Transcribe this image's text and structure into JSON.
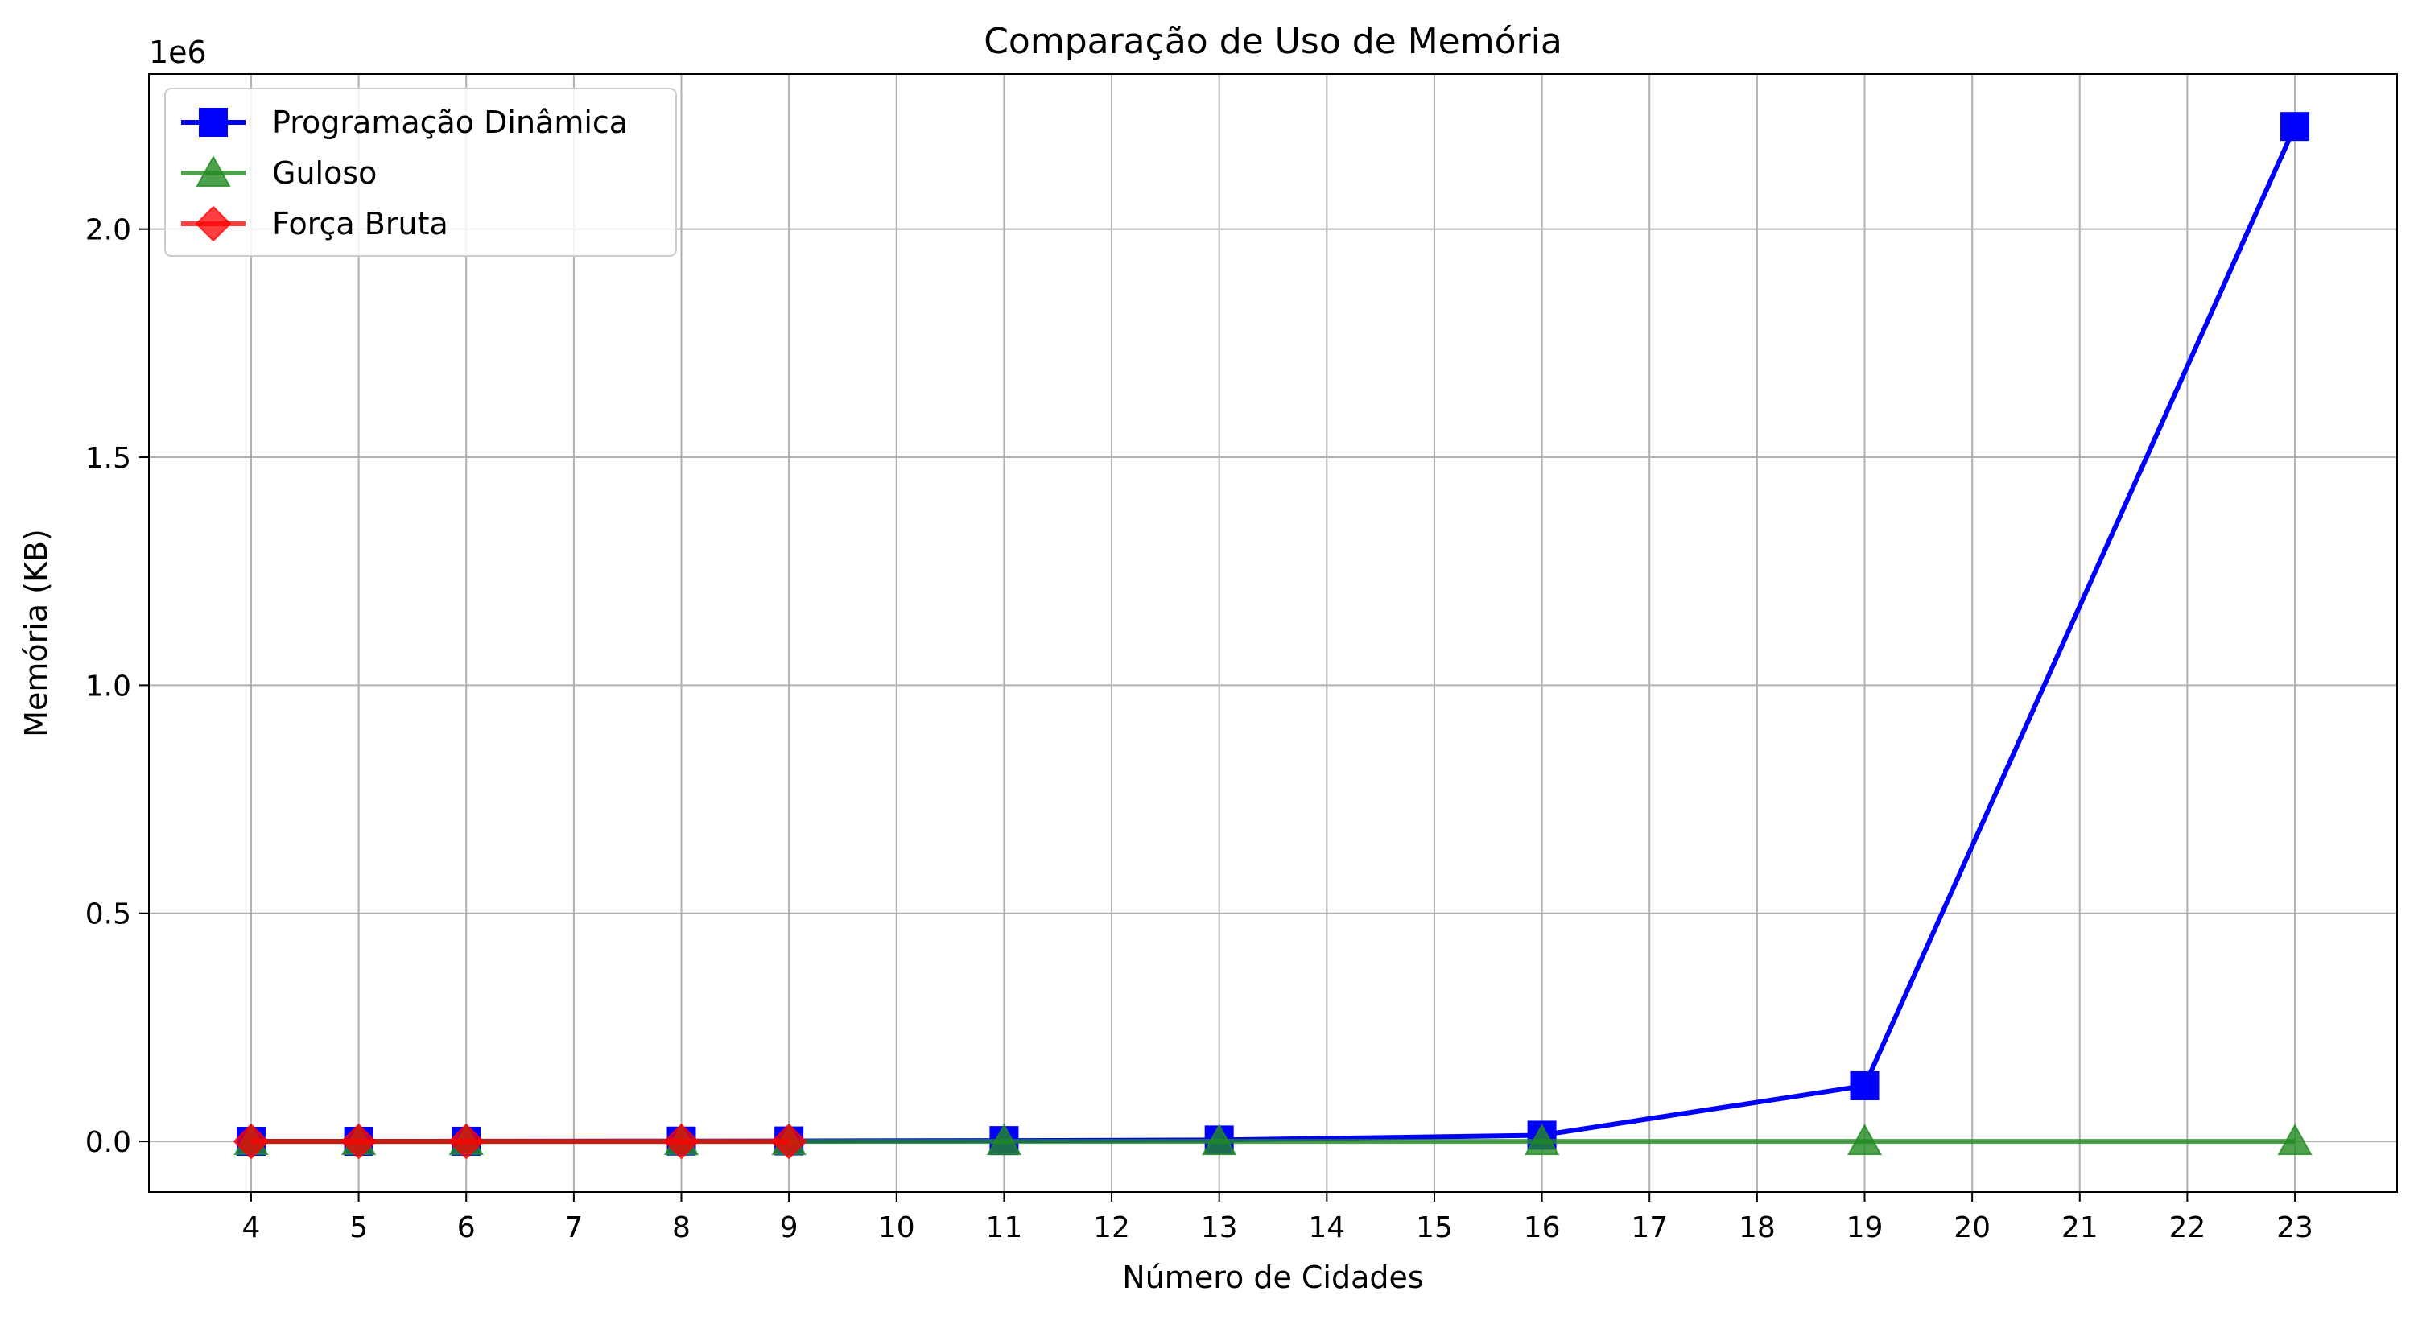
{
  "chart_data": {
    "type": "line",
    "title": "Comparação de Uso de Memória",
    "xlabel": "Número de Cidades",
    "ylabel": "Memória (KB)",
    "y_offset_label": "1e6",
    "xticks": [
      4,
      5,
      6,
      7,
      8,
      9,
      10,
      11,
      12,
      13,
      14,
      15,
      16,
      17,
      18,
      19,
      20,
      21,
      22,
      23
    ],
    "yticks": [
      0,
      0.5,
      1.0,
      1.5,
      2.0
    ],
    "ytick_labels": [
      "0.0",
      "0.5",
      "1.0",
      "1.5",
      "2.0"
    ],
    "xlim": [
      3.05,
      23.95
    ],
    "ylim": [
      -0.111,
      2.34
    ],
    "grid": true,
    "legend_position": "upper-left",
    "series": [
      {
        "name": "Programação Dinâmica",
        "color": "#0000ff",
        "marker": "square",
        "alpha": 1.0,
        "x": [
          4,
          5,
          6,
          8,
          9,
          11,
          13,
          16,
          19,
          23
        ],
        "y": [
          0.0001,
          0.0002,
          0.0003,
          0.0006,
          0.0009,
          0.0017,
          0.003,
          0.0135,
          0.122,
          2.225
        ]
      },
      {
        "name": "Guloso",
        "color": "#228b22",
        "marker": "triangle",
        "alpha": 0.8,
        "x": [
          4,
          5,
          6,
          8,
          9,
          11,
          13,
          16,
          19,
          23
        ],
        "y": [
          0,
          0,
          0,
          0,
          0,
          0,
          0,
          0,
          0,
          0
        ]
      },
      {
        "name": "Força Bruta",
        "color": "#ff0000",
        "marker": "diamond",
        "alpha": 0.75,
        "x": [
          4,
          5,
          6,
          8,
          9
        ],
        "y": [
          0,
          0,
          0,
          0,
          0
        ]
      }
    ]
  }
}
